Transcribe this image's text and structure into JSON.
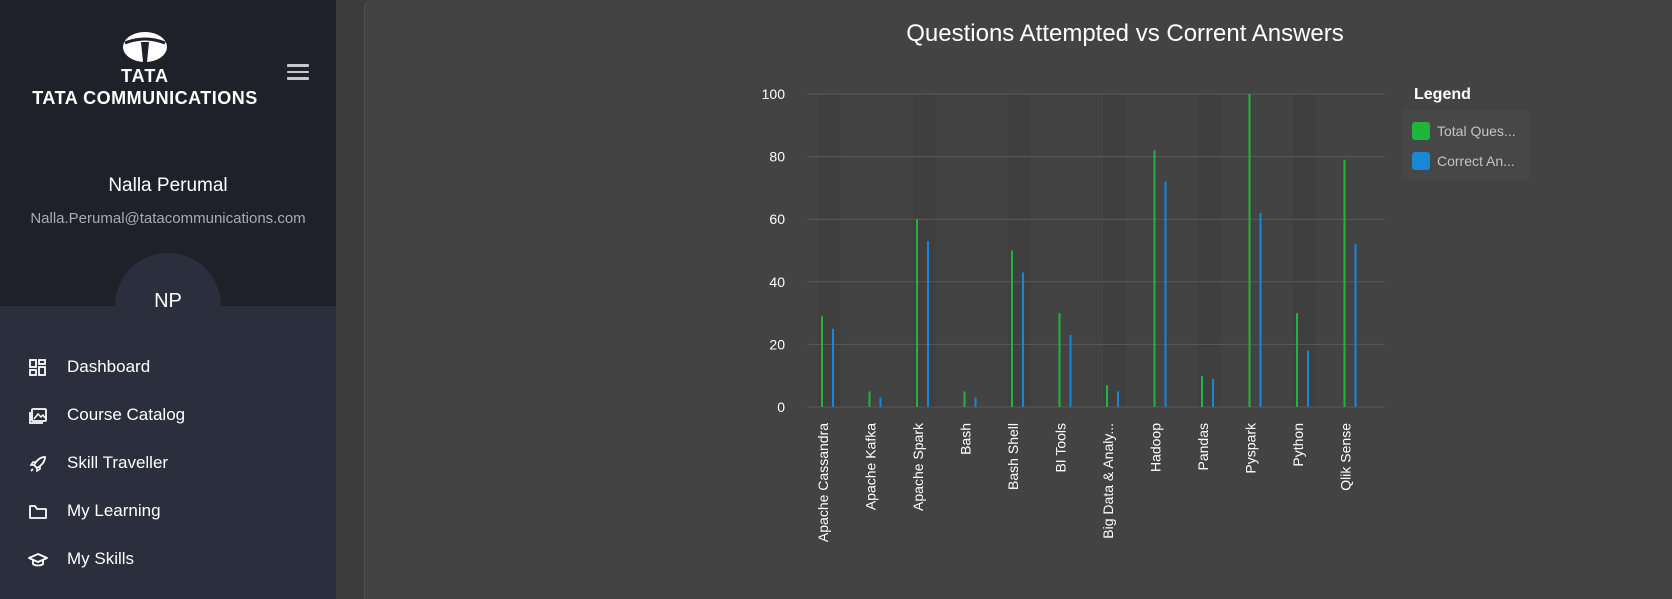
{
  "sidebar": {
    "logo": {
      "wordmark": "TATA",
      "company": "TATA COMMUNICATIONS"
    },
    "user": {
      "name": "Nalla Perumal",
      "email": "Nalla.Perumal@tatacommunications.com",
      "initials": "NP"
    },
    "nav": [
      {
        "label": "Dashboard",
        "icon": "dashboard-icon"
      },
      {
        "label": "Course Catalog",
        "icon": "course-catalog-icon"
      },
      {
        "label": "Skill Traveller",
        "icon": "rocket-icon"
      },
      {
        "label": "My Learning",
        "icon": "folder-icon"
      },
      {
        "label": "My Skills",
        "icon": "graduation-cap-icon"
      }
    ]
  },
  "chart": {
    "title": "Questions Attempted vs Corrent Answers",
    "legend_title": "Legend",
    "legend": [
      "Total Ques...",
      "Correct An..."
    ]
  },
  "colors": {
    "total": "#1fb53a",
    "correct": "#1787d8",
    "sidebar_top": "#1f2029",
    "sidebar_bottom": "#2b2f3d",
    "panel": "#434343"
  },
  "chart_data": {
    "type": "bar",
    "title": "Questions Attempted vs Corrent Answers",
    "categories": [
      "Apache Cassandra",
      "Apache Kafka",
      "Apache Spark",
      "Bash",
      "Bash Shell",
      "BI Tools",
      "Big Data & Analy...",
      "Hadoop",
      "Pandas",
      "Pyspark",
      "Python",
      "Qlik Sense"
    ],
    "series": [
      {
        "name": "Total Ques...",
        "values": [
          29,
          5,
          60,
          5,
          50,
          30,
          7,
          82,
          10,
          100,
          30,
          79
        ]
      },
      {
        "name": "Correct An...",
        "values": [
          25,
          3,
          53,
          3,
          43,
          23,
          5,
          72,
          9,
          62,
          18,
          52
        ]
      }
    ],
    "yticks": [
      0,
      20,
      40,
      60,
      80,
      100
    ],
    "ylim": [
      0,
      100
    ],
    "grid": true,
    "legend_placement": "right"
  }
}
